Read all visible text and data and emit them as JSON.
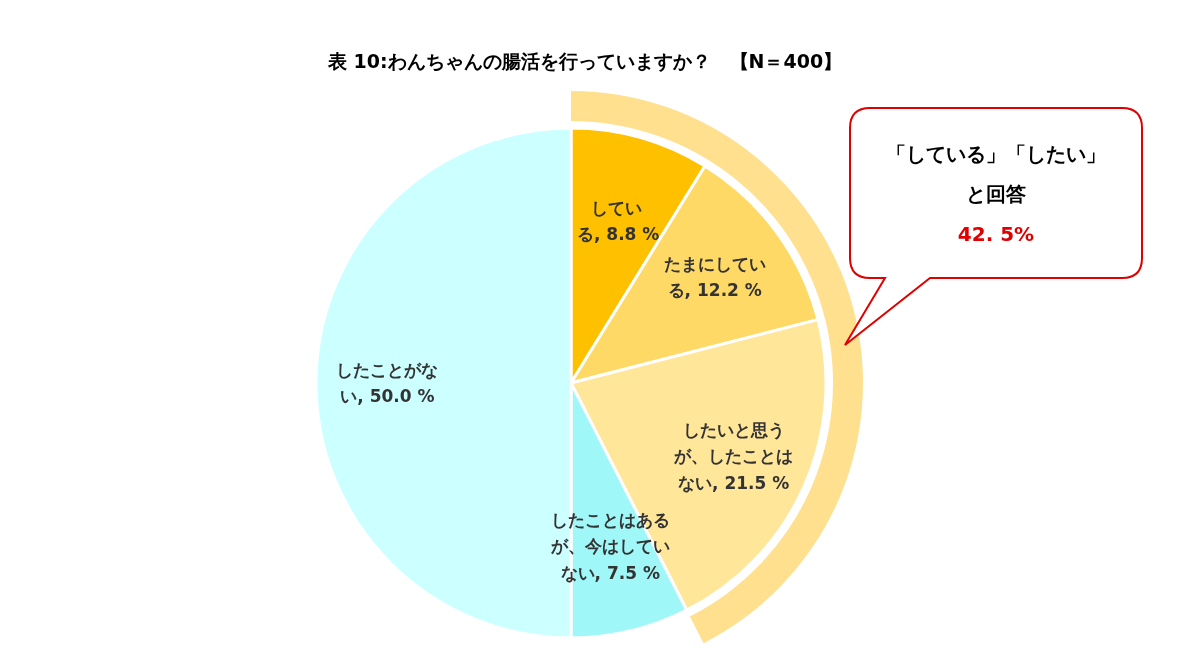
{
  "chart_data": {
    "type": "pie",
    "title": "表 10:わんちゃんの腸活を行っていますか？　【N＝400】",
    "categories": [
      "している",
      "たまにしている",
      "したいと思うが、したことはない",
      "したことはあるが、今はしていない",
      "したことがない"
    ],
    "values": [
      8.8,
      12.2,
      21.5,
      7.5,
      50.0
    ],
    "colors": [
      "#ffc000",
      "#ffd966",
      "#ffe699",
      "#a0f7f7",
      "#ccffff"
    ],
    "value_labels": [
      "8.8 %",
      "12.2 %",
      "21.5 %",
      "7.5 %",
      "50.0 %"
    ],
    "annotations": [
      "「している」「したい」",
      "と回答",
      "42. 5%"
    ]
  }
}
